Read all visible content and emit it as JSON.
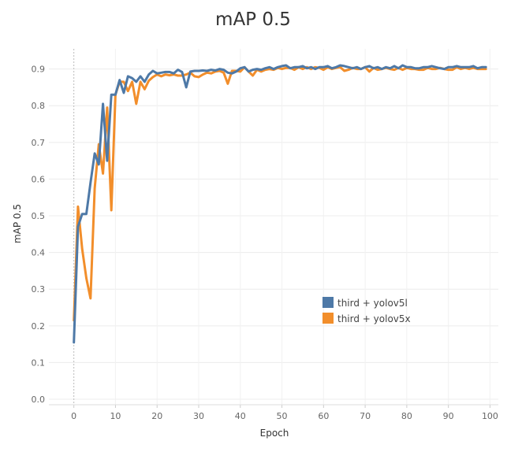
{
  "chart_data": {
    "type": "line",
    "title": "mAP 0.5",
    "xlabel": "Epoch",
    "ylabel": "mAP 0.5",
    "xlim": [
      -6,
      102
    ],
    "ylim": [
      -0.015,
      0.955
    ],
    "xticks": [
      0,
      10,
      20,
      30,
      40,
      50,
      60,
      70,
      80,
      90,
      100
    ],
    "yticks": [
      0.0,
      0.1,
      0.2,
      0.3,
      0.4,
      0.5,
      0.6,
      0.7,
      0.8,
      0.9
    ],
    "grid": true,
    "legend_position": "center-right",
    "series": [
      {
        "name": "third + yolov5l",
        "color": "#4e79a7",
        "x": [
          0,
          1,
          2,
          3,
          4,
          5,
          6,
          7,
          8,
          9,
          10,
          11,
          12,
          13,
          14,
          15,
          16,
          17,
          18,
          19,
          20,
          21,
          22,
          23,
          24,
          25,
          26,
          27,
          28,
          29,
          30,
          31,
          32,
          33,
          34,
          35,
          36,
          37,
          38,
          39,
          40,
          41,
          42,
          43,
          44,
          45,
          46,
          47,
          48,
          49,
          50,
          51,
          52,
          53,
          54,
          55,
          56,
          57,
          58,
          59,
          60,
          61,
          62,
          63,
          64,
          65,
          66,
          67,
          68,
          69,
          70,
          71,
          72,
          73,
          74,
          75,
          76,
          77,
          78,
          79,
          80,
          81,
          82,
          83,
          84,
          85,
          86,
          87,
          88,
          89,
          90,
          91,
          92,
          93,
          94,
          95,
          96,
          97,
          98,
          99
        ],
        "y": [
          0.155,
          0.47,
          0.505,
          0.505,
          0.59,
          0.67,
          0.64,
          0.805,
          0.65,
          0.83,
          0.83,
          0.87,
          0.835,
          0.88,
          0.875,
          0.865,
          0.88,
          0.865,
          0.885,
          0.895,
          0.888,
          0.89,
          0.892,
          0.892,
          0.888,
          0.898,
          0.892,
          0.85,
          0.893,
          0.895,
          0.895,
          0.896,
          0.895,
          0.898,
          0.896,
          0.9,
          0.898,
          0.89,
          0.888,
          0.893,
          0.902,
          0.905,
          0.893,
          0.898,
          0.9,
          0.898,
          0.902,
          0.905,
          0.9,
          0.905,
          0.908,
          0.91,
          0.902,
          0.905,
          0.905,
          0.908,
          0.902,
          0.905,
          0.9,
          0.905,
          0.905,
          0.908,
          0.902,
          0.905,
          0.91,
          0.908,
          0.905,
          0.902,
          0.905,
          0.9,
          0.905,
          0.908,
          0.902,
          0.905,
          0.9,
          0.905,
          0.902,
          0.908,
          0.902,
          0.91,
          0.905,
          0.905,
          0.902,
          0.902,
          0.905,
          0.905,
          0.908,
          0.905,
          0.902,
          0.9,
          0.905,
          0.905,
          0.908,
          0.905,
          0.905,
          0.905,
          0.908,
          0.902,
          0.905,
          0.905
        ]
      },
      {
        "name": "third + yolov5x",
        "color": "#f28e2b",
        "x": [
          0,
          1,
          2,
          3,
          4,
          5,
          6,
          7,
          8,
          9,
          10,
          11,
          12,
          13,
          14,
          15,
          16,
          17,
          18,
          19,
          20,
          21,
          22,
          23,
          24,
          25,
          26,
          27,
          28,
          29,
          30,
          31,
          32,
          33,
          34,
          35,
          36,
          37,
          38,
          39,
          40,
          41,
          42,
          43,
          44,
          45,
          46,
          47,
          48,
          49,
          50,
          51,
          52,
          53,
          54,
          55,
          56,
          57,
          58,
          59,
          60,
          61,
          62,
          63,
          64,
          65,
          66,
          67,
          68,
          69,
          70,
          71,
          72,
          73,
          74,
          75,
          76,
          77,
          78,
          79,
          80,
          81,
          82,
          83,
          84,
          85,
          86,
          87,
          88,
          89,
          90,
          91,
          92,
          93,
          94,
          95,
          96,
          97,
          98,
          99
        ],
        "y": [
          0.215,
          0.525,
          0.41,
          0.33,
          0.275,
          0.575,
          0.695,
          0.615,
          0.795,
          0.515,
          0.83,
          0.865,
          0.865,
          0.84,
          0.865,
          0.805,
          0.865,
          0.845,
          0.868,
          0.878,
          0.885,
          0.88,
          0.885,
          0.883,
          0.885,
          0.882,
          0.882,
          0.885,
          0.89,
          0.88,
          0.878,
          0.885,
          0.89,
          0.888,
          0.893,
          0.895,
          0.89,
          0.86,
          0.895,
          0.895,
          0.893,
          0.905,
          0.893,
          0.882,
          0.898,
          0.893,
          0.898,
          0.9,
          0.898,
          0.903,
          0.9,
          0.903,
          0.903,
          0.898,
          0.905,
          0.9,
          0.905,
          0.9,
          0.905,
          0.903,
          0.898,
          0.905,
          0.9,
          0.903,
          0.905,
          0.895,
          0.898,
          0.903,
          0.9,
          0.9,
          0.905,
          0.893,
          0.903,
          0.898,
          0.9,
          0.903,
          0.9,
          0.898,
          0.903,
          0.898,
          0.903,
          0.9,
          0.9,
          0.898,
          0.898,
          0.903,
          0.9,
          0.9,
          0.903,
          0.9,
          0.898,
          0.898,
          0.905,
          0.9,
          0.903,
          0.9,
          0.903,
          0.9,
          0.9,
          0.9
        ]
      }
    ]
  }
}
